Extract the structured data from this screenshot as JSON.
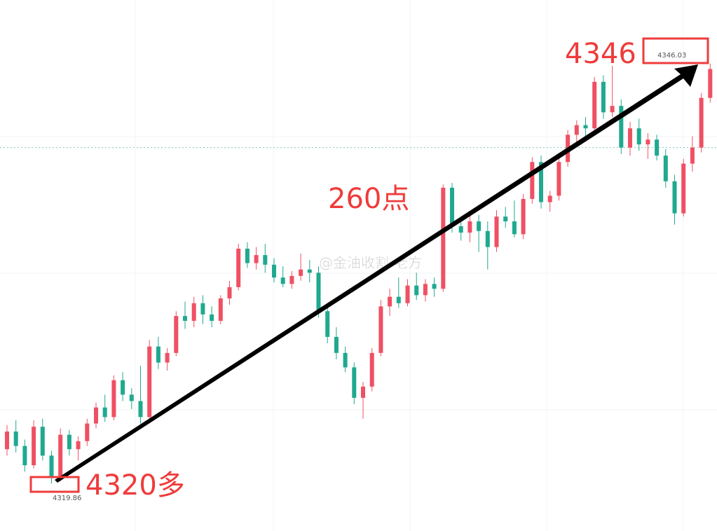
{
  "chart_data": {
    "type": "candlestick",
    "up_color": "#ef5063",
    "down_color": "#1fa98f",
    "ylim": [
      4316.9,
      4350
    ],
    "price_line": 4340.8,
    "annotations": {
      "high_note": "4346",
      "low_note": "4320多",
      "range_note": "260点",
      "watermark": "@金油收割-老方"
    },
    "candles": [
      [
        4322.0,
        4323.5,
        4321.6,
        4323.1
      ],
      [
        4323.1,
        4323.8,
        4321.8,
        4322.2
      ],
      [
        4322.2,
        4322.6,
        4320.6,
        4321.0
      ],
      [
        4321.0,
        4323.8,
        4320.8,
        4323.4
      ],
      [
        4323.4,
        4323.9,
        4321.3,
        4321.6
      ],
      [
        4321.6,
        4321.9,
        4319.86,
        4320.2
      ],
      [
        4320.2,
        4323.3,
        4320.0,
        4322.9
      ],
      [
        4322.9,
        4323.2,
        4321.6,
        4322.0
      ],
      [
        4322.0,
        4322.8,
        4321.3,
        4322.5
      ],
      [
        4322.5,
        4323.9,
        4322.2,
        4323.6
      ],
      [
        4323.6,
        4324.9,
        4323.3,
        4324.6
      ],
      [
        4324.6,
        4325.4,
        4323.7,
        4324.0
      ],
      [
        4324.0,
        4326.6,
        4323.8,
        4326.3
      ],
      [
        4326.3,
        4326.8,
        4325.0,
        4325.4
      ],
      [
        4325.4,
        4325.8,
        4324.5,
        4325.0
      ],
      [
        4325.0,
        4327.2,
        4323.6,
        4324.0
      ],
      [
        4324.0,
        4328.8,
        4323.9,
        4328.4
      ],
      [
        4328.4,
        4329.0,
        4327.0,
        4327.4
      ],
      [
        4327.4,
        4328.3,
        4326.9,
        4328.0
      ],
      [
        4328.0,
        4330.6,
        4327.8,
        4330.3
      ],
      [
        4330.3,
        4331.2,
        4329.5,
        4330.0
      ],
      [
        4330.0,
        4331.5,
        4329.6,
        4331.1
      ],
      [
        4331.1,
        4331.6,
        4329.8,
        4330.4
      ],
      [
        4330.4,
        4330.9,
        4329.6,
        4330.0
      ],
      [
        4330.0,
        4331.6,
        4329.8,
        4331.4
      ],
      [
        4331.4,
        4332.5,
        4331.0,
        4332.1
      ],
      [
        4332.1,
        4334.8,
        4331.9,
        4334.5
      ],
      [
        4334.5,
        4334.9,
        4333.3,
        4333.6
      ],
      [
        4333.6,
        4334.6,
        4333.2,
        4334.1
      ],
      [
        4334.1,
        4334.8,
        4333.0,
        4333.5
      ],
      [
        4333.5,
        4333.9,
        4332.4,
        4332.7
      ],
      [
        4332.7,
        4333.4,
        4332.1,
        4332.3
      ],
      [
        4332.3,
        4333.1,
        4332.0,
        4332.8
      ],
      [
        4332.8,
        4334.2,
        4332.5,
        4333.2
      ],
      [
        4333.2,
        4333.8,
        4332.4,
        4333.0
      ],
      [
        4333.0,
        4333.4,
        4330.2,
        4330.6
      ],
      [
        4330.6,
        4330.9,
        4328.6,
        4329.0
      ],
      [
        4329.0,
        4329.6,
        4327.6,
        4328.0
      ],
      [
        4328.0,
        4328.4,
        4326.8,
        4327.1
      ],
      [
        4327.1,
        4327.4,
        4324.8,
        4325.2
      ],
      [
        4325.2,
        4326.2,
        4323.9,
        4325.9
      ],
      [
        4325.9,
        4328.3,
        4325.6,
        4328.0
      ],
      [
        4328.0,
        4331.3,
        4327.8,
        4330.9
      ],
      [
        4330.9,
        4332.0,
        4330.3,
        4331.5
      ],
      [
        4331.5,
        4332.7,
        4330.8,
        4331.1
      ],
      [
        4331.1,
        4332.6,
        4330.9,
        4332.2
      ],
      [
        4332.2,
        4333.0,
        4331.3,
        4331.6
      ],
      [
        4331.6,
        4332.6,
        4331.2,
        4332.3
      ],
      [
        4332.3,
        4332.7,
        4331.5,
        4332.0
      ],
      [
        4332.0,
        4338.5,
        4331.8,
        4338.3
      ],
      [
        4338.3,
        4338.6,
        4335.5,
        4335.9
      ],
      [
        4335.9,
        4336.5,
        4335.0,
        4335.5
      ],
      [
        4335.5,
        4336.8,
        4334.9,
        4336.2
      ],
      [
        4336.2,
        4336.6,
        4334.3,
        4335.6
      ],
      [
        4335.6,
        4336.2,
        4333.2,
        4334.6
      ],
      [
        4334.6,
        4336.9,
        4334.3,
        4336.5
      ],
      [
        4336.5,
        4337.1,
        4335.8,
        4336.2
      ],
      [
        4336.2,
        4337.5,
        4335.2,
        4335.4
      ],
      [
        4335.4,
        4337.9,
        4335.1,
        4337.6
      ],
      [
        4337.6,
        4340.2,
        4337.3,
        4339.9
      ],
      [
        4339.9,
        4340.3,
        4337.0,
        4337.4
      ],
      [
        4337.4,
        4338.1,
        4336.8,
        4337.8
      ],
      [
        4337.8,
        4340.3,
        4337.5,
        4339.9
      ],
      [
        4339.9,
        4341.9,
        4339.6,
        4341.6
      ],
      [
        4341.6,
        4342.5,
        4341.0,
        4342.2
      ],
      [
        4342.2,
        4342.7,
        4341.5,
        4342.0
      ],
      [
        4342.0,
        4345.2,
        4341.8,
        4344.9
      ],
      [
        4344.9,
        4345.3,
        4342.6,
        4343.0
      ],
      [
        4343.0,
        4345.9,
        4342.7,
        4343.4
      ],
      [
        4343.4,
        4343.8,
        4340.4,
        4340.8
      ],
      [
        4340.8,
        4342.4,
        4340.3,
        4342.0
      ],
      [
        4342.0,
        4342.6,
        4340.6,
        4341.0
      ],
      [
        4341.0,
        4341.7,
        4340.1,
        4341.3
      ],
      [
        4341.3,
        4341.6,
        4340.0,
        4340.3
      ],
      [
        4340.3,
        4340.7,
        4338.3,
        4338.7
      ],
      [
        4338.7,
        4339.1,
        4336.0,
        4336.7
      ],
      [
        4336.7,
        4340.1,
        4336.5,
        4339.8
      ],
      [
        4339.8,
        4341.5,
        4339.3,
        4340.8
      ],
      [
        4340.8,
        4344.2,
        4340.5,
        4343.9
      ],
      [
        4343.9,
        4346.03,
        4343.6,
        4345.7
      ]
    ]
  }
}
